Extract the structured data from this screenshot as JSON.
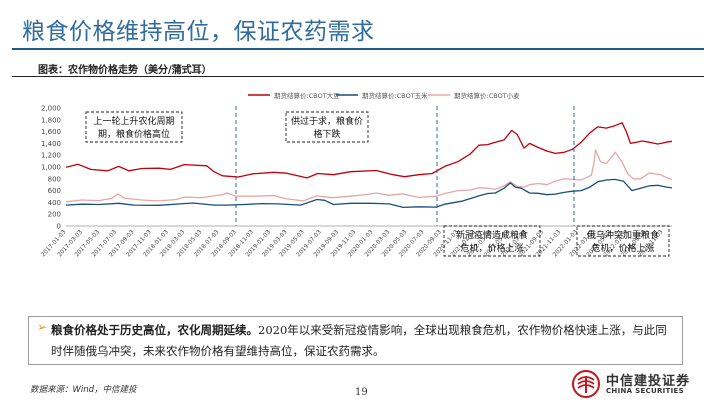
{
  "page": {
    "title": "粮食价格维持高位，保证农药需求",
    "caption": "图表：农作物价格走势（美分/蒲式耳）",
    "bullet_bold": "粮食价格处于历史高位，农化周期延续。",
    "bullet_text": "2020年以来受新冠疫情影响，全球出现粮食危机，农作物价格快速上涨，与此同时伴随俄乌冲突，未来农作物价格有望维持高位，保证农药需求。",
    "source": "数据来源：Wind，中信建投",
    "page_number": "19",
    "logo_cn": "中信建投证券",
    "logo_en": "CHINA SECURITIES",
    "arrow_glyph": "➢"
  },
  "chart_data": {
    "type": "line",
    "ylim": [
      0,
      2000
    ],
    "yticks": [
      "0",
      "200",
      "400",
      "600",
      "800",
      "1,000",
      "1,200",
      "1,400",
      "1,600",
      "1,800",
      "2,000"
    ],
    "ytick_values": [
      0,
      200,
      400,
      600,
      800,
      1000,
      1200,
      1400,
      1600,
      1800,
      2000
    ],
    "x_labels": [
      "2017-01-03",
      "2017-03-03",
      "2017-05-03",
      "2017-07-03",
      "2017-09-03",
      "2017-11-03",
      "2018-01-03",
      "2018-03-03",
      "2018-05-03",
      "2018-07-03",
      "2018-09-03",
      "2018-11-03",
      "2019-01-03",
      "2019-03-03",
      "2019-05-03",
      "2019-07-03",
      "2019-09-03",
      "2019-11-03",
      "2020-01-03",
      "2020-03-03",
      "2020-05-03",
      "2020-07-03",
      "2020-09-03",
      "2020-11-03",
      "2021-01-03",
      "2021-03-03",
      "2021-05-03",
      "2021-07-03",
      "2021-09-03",
      "2021-11-03",
      "2022-01-03",
      "2022-03-03",
      "2022-05-03",
      "2022-07-03",
      "2022-09-03",
      "2022-11-03"
    ],
    "x_range": [
      "2017-01-03",
      "2022-12-05"
    ],
    "legend_position": "top",
    "series": [
      {
        "name": "期货结算价:CBOT大豆",
        "color": "#c0000b",
        "points": [
          [
            "2017-01-03",
            995
          ],
          [
            "2017-02-15",
            1045
          ],
          [
            "2017-04-01",
            960
          ],
          [
            "2017-06-01",
            935
          ],
          [
            "2017-07-10",
            1010
          ],
          [
            "2017-08-15",
            935
          ],
          [
            "2017-10-01",
            975
          ],
          [
            "2017-12-01",
            980
          ],
          [
            "2018-01-10",
            960
          ],
          [
            "2018-03-01",
            1040
          ],
          [
            "2018-05-20",
            1020
          ],
          [
            "2018-06-15",
            920
          ],
          [
            "2018-07-15",
            850
          ],
          [
            "2018-09-10",
            830
          ],
          [
            "2018-11-01",
            885
          ],
          [
            "2019-01-15",
            910
          ],
          [
            "2019-03-01",
            895
          ],
          [
            "2019-05-13",
            815
          ],
          [
            "2019-06-20",
            890
          ],
          [
            "2019-08-15",
            870
          ],
          [
            "2019-10-15",
            920
          ],
          [
            "2020-01-15",
            940
          ],
          [
            "2020-03-15",
            870
          ],
          [
            "2020-04-25",
            835
          ],
          [
            "2020-06-15",
            870
          ],
          [
            "2020-08-01",
            890
          ],
          [
            "2020-09-15",
            1010
          ],
          [
            "2020-11-01",
            1090
          ],
          [
            "2020-12-15",
            1220
          ],
          [
            "2021-01-15",
            1370
          ],
          [
            "2021-02-15",
            1380
          ],
          [
            "2021-03-15",
            1420
          ],
          [
            "2021-04-15",
            1460
          ],
          [
            "2021-05-12",
            1620
          ],
          [
            "2021-06-01",
            1550
          ],
          [
            "2021-06-25",
            1320
          ],
          [
            "2021-07-15",
            1400
          ],
          [
            "2021-08-15",
            1330
          ],
          [
            "2021-09-15",
            1270
          ],
          [
            "2021-10-15",
            1230
          ],
          [
            "2021-11-15",
            1250
          ],
          [
            "2021-12-15",
            1300
          ],
          [
            "2022-01-15",
            1420
          ],
          [
            "2022-02-15",
            1580
          ],
          [
            "2022-03-15",
            1680
          ],
          [
            "2022-04-15",
            1660
          ],
          [
            "2022-05-15",
            1700
          ],
          [
            "2022-06-10",
            1750
          ],
          [
            "2022-06-25",
            1600
          ],
          [
            "2022-07-10",
            1400
          ],
          [
            "2022-08-01",
            1420
          ],
          [
            "2022-08-20",
            1440
          ],
          [
            "2022-09-15",
            1420
          ],
          [
            "2022-10-15",
            1390
          ],
          [
            "2022-11-15",
            1420
          ],
          [
            "2022-12-05",
            1435
          ]
        ]
      },
      {
        "name": "期货结算价:CBOT玉米",
        "color": "#1b4f7a",
        "points": [
          [
            "2017-01-03",
            355
          ],
          [
            "2017-03-01",
            370
          ],
          [
            "2017-05-01",
            365
          ],
          [
            "2017-07-10",
            385
          ],
          [
            "2017-09-01",
            355
          ],
          [
            "2017-12-01",
            350
          ],
          [
            "2018-02-15",
            375
          ],
          [
            "2018-04-01",
            390
          ],
          [
            "2018-06-15",
            355
          ],
          [
            "2018-08-01",
            355
          ],
          [
            "2018-10-01",
            365
          ],
          [
            "2018-12-01",
            380
          ],
          [
            "2019-02-01",
            375
          ],
          [
            "2019-04-20",
            355
          ],
          [
            "2019-06-17",
            450
          ],
          [
            "2019-07-15",
            435
          ],
          [
            "2019-08-15",
            365
          ],
          [
            "2019-10-15",
            385
          ],
          [
            "2020-01-01",
            385
          ],
          [
            "2020-03-01",
            375
          ],
          [
            "2020-04-20",
            315
          ],
          [
            "2020-06-15",
            325
          ],
          [
            "2020-08-15",
            320
          ],
          [
            "2020-09-15",
            370
          ],
          [
            "2020-11-15",
            420
          ],
          [
            "2021-01-15",
            510
          ],
          [
            "2021-02-15",
            550
          ],
          [
            "2021-03-15",
            560
          ],
          [
            "2021-04-15",
            640
          ],
          [
            "2021-05-07",
            730
          ],
          [
            "2021-05-25",
            660
          ],
          [
            "2021-06-15",
            640
          ],
          [
            "2021-07-15",
            560
          ],
          [
            "2021-08-15",
            555
          ],
          [
            "2021-09-15",
            530
          ],
          [
            "2021-10-15",
            540
          ],
          [
            "2021-11-15",
            570
          ],
          [
            "2021-12-15",
            590
          ],
          [
            "2022-01-15",
            600
          ],
          [
            "2022-02-15",
            660
          ],
          [
            "2022-03-15",
            750
          ],
          [
            "2022-04-15",
            780
          ],
          [
            "2022-05-15",
            790
          ],
          [
            "2022-06-15",
            760
          ],
          [
            "2022-07-15",
            600
          ],
          [
            "2022-08-15",
            640
          ],
          [
            "2022-09-15",
            680
          ],
          [
            "2022-10-15",
            690
          ],
          [
            "2022-11-15",
            660
          ],
          [
            "2022-12-05",
            645
          ]
        ]
      },
      {
        "name": "期货结算价:CBOT小麦",
        "color": "#e5a7a5",
        "points": [
          [
            "2017-01-03",
            410
          ],
          [
            "2017-03-01",
            440
          ],
          [
            "2017-05-01",
            430
          ],
          [
            "2017-06-15",
            470
          ],
          [
            "2017-07-07",
            540
          ],
          [
            "2017-08-01",
            470
          ],
          [
            "2017-10-01",
            440
          ],
          [
            "2017-12-01",
            425
          ],
          [
            "2018-02-01",
            450
          ],
          [
            "2018-03-01",
            490
          ],
          [
            "2018-05-01",
            480
          ],
          [
            "2018-06-15",
            510
          ],
          [
            "2018-07-15",
            530
          ],
          [
            "2018-08-01",
            560
          ],
          [
            "2018-09-01",
            505
          ],
          [
            "2018-11-01",
            505
          ],
          [
            "2019-01-15",
            515
          ],
          [
            "2019-03-01",
            460
          ],
          [
            "2019-05-01",
            425
          ],
          [
            "2019-06-15",
            510
          ],
          [
            "2019-08-15",
            480
          ],
          [
            "2019-10-15",
            505
          ],
          [
            "2019-12-15",
            535
          ],
          [
            "2020-01-15",
            560
          ],
          [
            "2020-03-01",
            520
          ],
          [
            "2020-04-15",
            545
          ],
          [
            "2020-06-15",
            485
          ],
          [
            "2020-08-15",
            505
          ],
          [
            "2020-09-15",
            550
          ],
          [
            "2020-11-01",
            600
          ],
          [
            "2020-12-15",
            610
          ],
          [
            "2021-01-15",
            650
          ],
          [
            "2021-02-15",
            640
          ],
          [
            "2021-03-15",
            620
          ],
          [
            "2021-04-15",
            680
          ],
          [
            "2021-05-07",
            750
          ],
          [
            "2021-06-01",
            670
          ],
          [
            "2021-06-25",
            660
          ],
          [
            "2021-07-15",
            700
          ],
          [
            "2021-08-15",
            720
          ],
          [
            "2021-09-15",
            700
          ],
          [
            "2021-10-15",
            760
          ],
          [
            "2021-11-15",
            800
          ],
          [
            "2021-12-15",
            790
          ],
          [
            "2022-01-15",
            780
          ],
          [
            "2022-02-20",
            860
          ],
          [
            "2022-03-01",
            1050
          ],
          [
            "2022-03-07",
            1290
          ],
          [
            "2022-03-25",
            1090
          ],
          [
            "2022-04-15",
            1060
          ],
          [
            "2022-05-17",
            1250
          ],
          [
            "2022-06-10",
            1080
          ],
          [
            "2022-07-01",
            880
          ],
          [
            "2022-07-20",
            800
          ],
          [
            "2022-08-15",
            800
          ],
          [
            "2022-09-15",
            900
          ],
          [
            "2022-10-10",
            880
          ],
          [
            "2022-10-25",
            870
          ],
          [
            "2022-11-15",
            820
          ],
          [
            "2022-12-05",
            790
          ]
        ]
      }
    ],
    "annotations": [
      {
        "text": "上一轮上升农化周期，粮食价格高位",
        "lines": [
          "上一轮上升农化周期",
          "期，粮食价格高位"
        ]
      },
      {
        "text": "供过于求，粮食价格下跌",
        "lines": [
          "供过于求，粮食价",
          "格下跌"
        ]
      },
      {
        "text": "新冠疫情造成粮食危机，价格上涨",
        "lines": [
          "新冠疫情造成粮食",
          "危机，价格上涨"
        ]
      },
      {
        "text": "俄乌冲突加重粮食危机，价格上涨",
        "lines": [
          "俄乌冲突加重粮食",
          "危机，价格上涨"
        ]
      }
    ]
  }
}
